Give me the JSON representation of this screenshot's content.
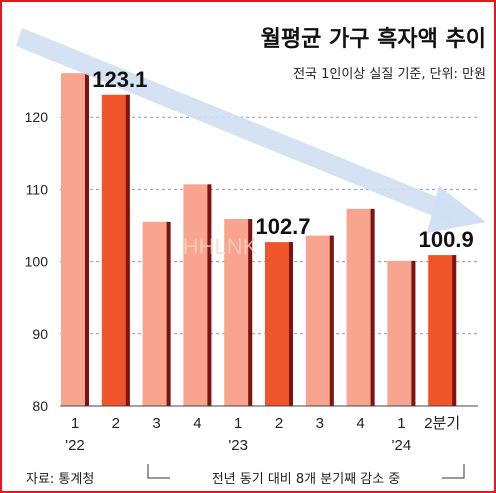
{
  "chart_data": {
    "type": "bar",
    "title": "월평균 가구 흑자액 추이",
    "subtitle": "전국 1인이상 실질 기준,  단위: 만원",
    "source": "자료: 통계청",
    "annotation": "전년 동기 대비 8개 분기째 감소 중",
    "watermark": "HHLNK",
    "ylim": [
      80,
      127
    ],
    "yticks": [
      80,
      90,
      100,
      110,
      120
    ],
    "grid": true,
    "categories": [
      "1",
      "2",
      "3",
      "4",
      "1",
      "2",
      "3",
      "4",
      "1",
      "2분기"
    ],
    "year_labels": [
      {
        "label": "'22",
        "category_index": 0
      },
      {
        "label": "'23",
        "category_index": 4
      },
      {
        "label": "'24",
        "category_index": 8
      }
    ],
    "values": [
      126.1,
      123.1,
      105.5,
      110.7,
      105.9,
      102.7,
      103.6,
      107.3,
      100.1,
      100.9
    ],
    "highlighted_indices": [
      1,
      5,
      9
    ],
    "data_labels": [
      {
        "index": 1,
        "text": "123.1"
      },
      {
        "index": 5,
        "text": "102.7"
      },
      {
        "index": 9,
        "text": "100.9"
      }
    ],
    "colors": {
      "bar_light": "#f8a48e",
      "bar_highlight": "#f0552a",
      "bar_shadow": "#7b1414",
      "arrow": "#cfdff2",
      "border": "#e8141e",
      "text": "#222222"
    }
  }
}
